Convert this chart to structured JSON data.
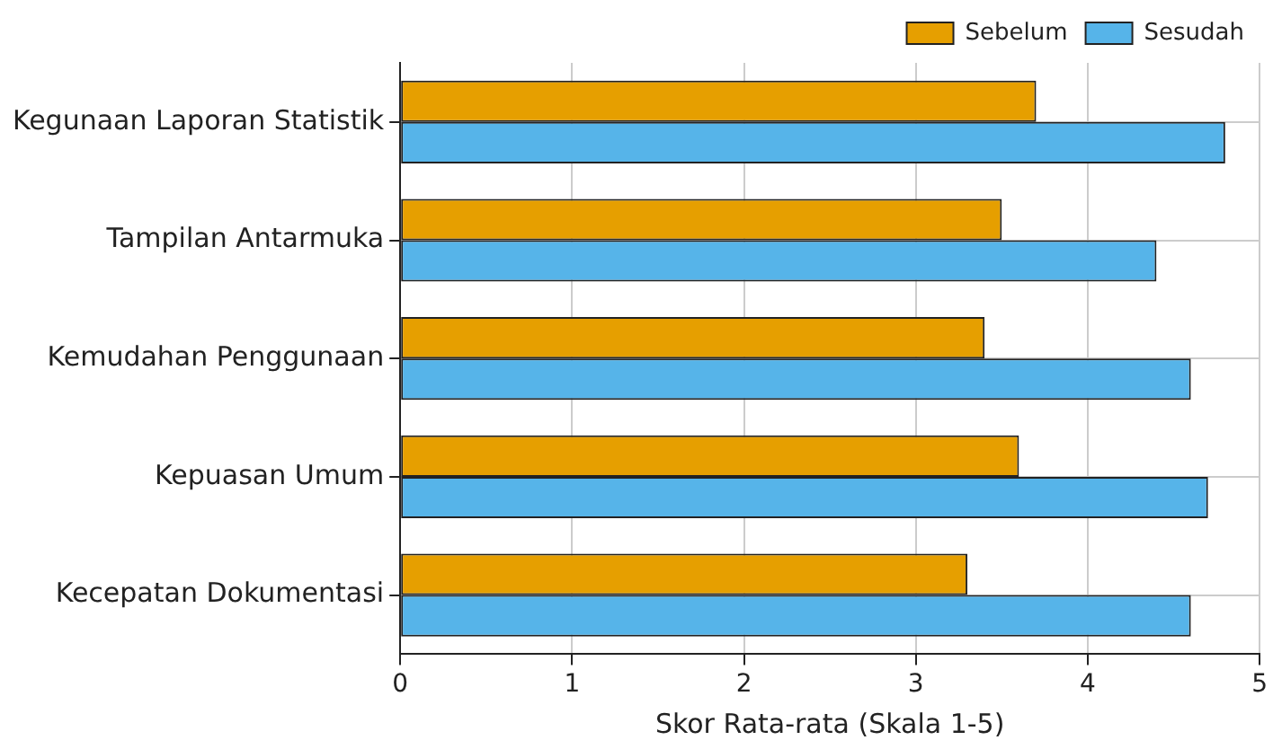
{
  "chart_data": {
    "type": "bar",
    "orientation": "horizontal",
    "xlabel": "Skor Rata-rata (Skala 1-5)",
    "categories": [
      "Kegunaan Laporan Statistik",
      "Tampilan Antarmuka",
      "Kemudahan Penggunaan",
      "Kepuasan Umum",
      "Kecepatan Dokumentasi"
    ],
    "series": [
      {
        "name": "Sebelum",
        "color": "#e69f00",
        "values": [
          3.7,
          3.5,
          3.4,
          3.6,
          3.3
        ]
      },
      {
        "name": "Sesudah",
        "color": "#56b4e9",
        "values": [
          4.8,
          4.4,
          4.6,
          4.7,
          4.6
        ]
      }
    ],
    "xlim": [
      0,
      5
    ],
    "xticks": [
      0,
      1,
      2,
      3,
      4,
      5
    ],
    "grid": true,
    "legend": "top right"
  }
}
